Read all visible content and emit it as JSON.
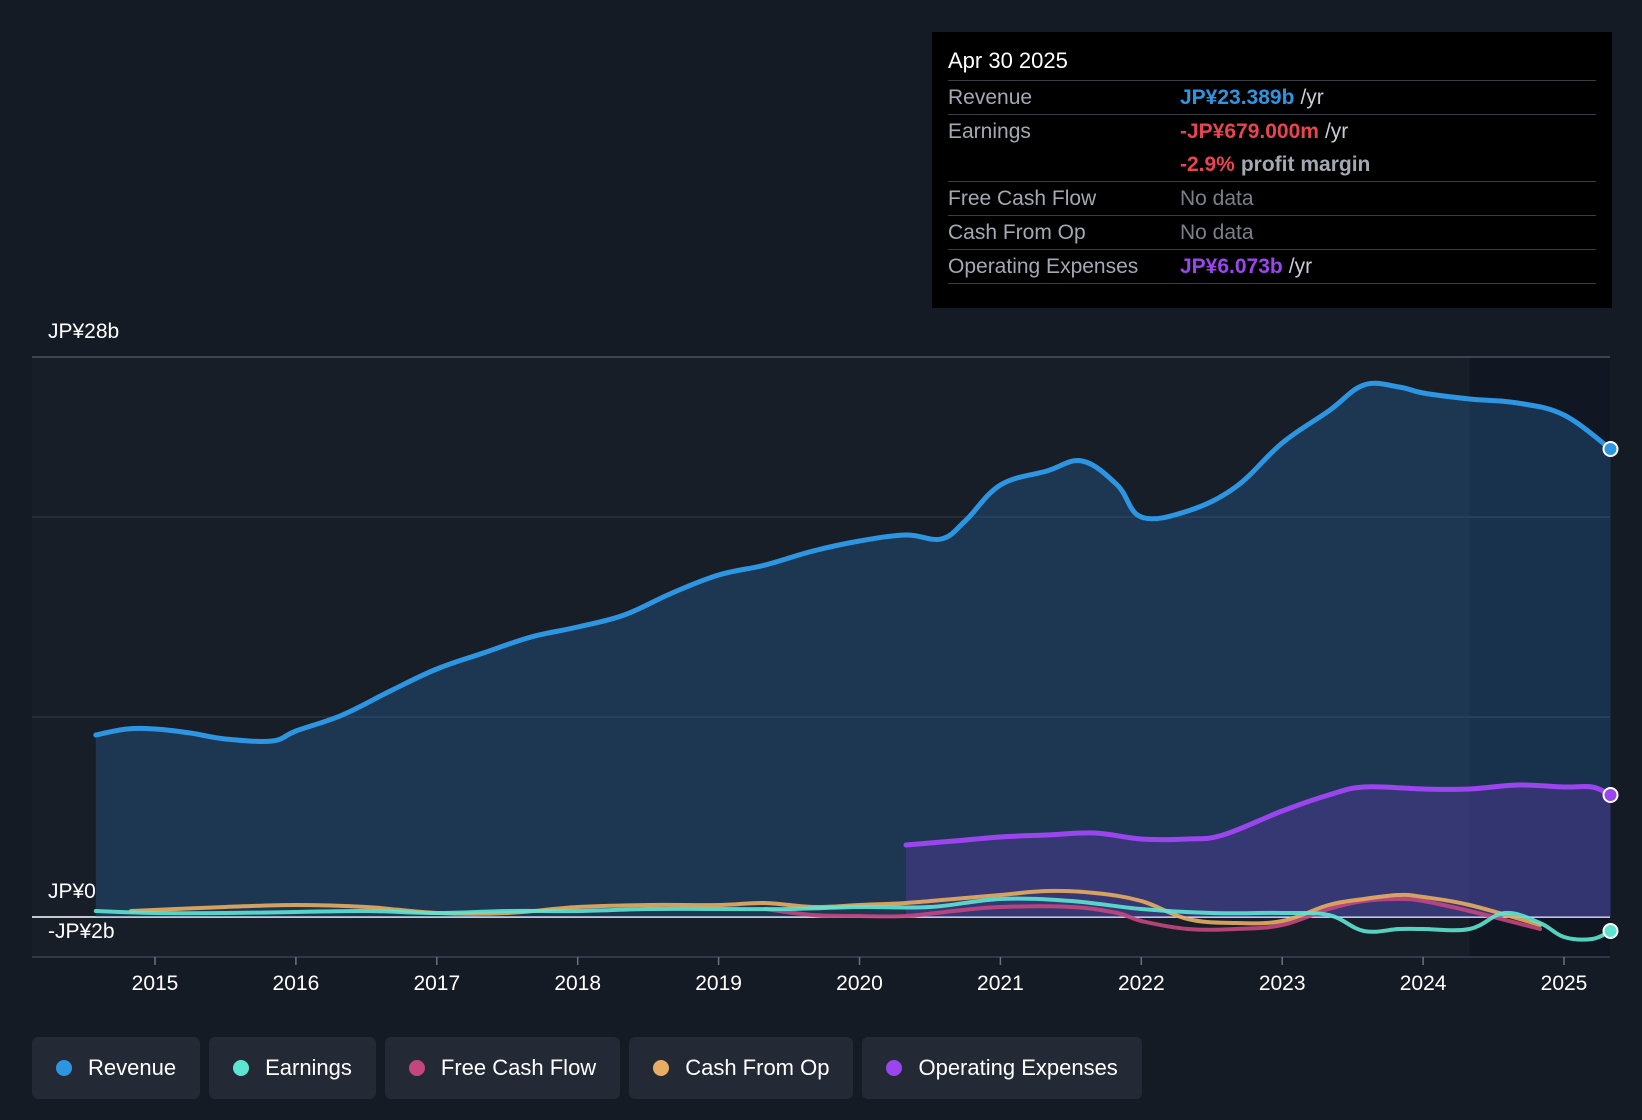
{
  "colors": {
    "revenue": "#2d96e2",
    "earnings": "#5ee5d1",
    "free_cash_flow": "#c4467f",
    "cash_from_op": "#e8ad62",
    "operating_expenses": "#9b45ee",
    "negative": "#e94451"
  },
  "tooltip": {
    "date": "Apr 30 2025",
    "rows": {
      "revenue": {
        "label": "Revenue",
        "value": "JP¥23.389b",
        "unit": "/yr"
      },
      "earnings": {
        "label": "Earnings",
        "value": "-JP¥679.000m",
        "unit": "/yr"
      },
      "margin": {
        "value": "-2.9%",
        "unit": "profit margin"
      },
      "fcf": {
        "label": "Free Cash Flow",
        "value": "No data"
      },
      "cfo": {
        "label": "Cash From Op",
        "value": "No data"
      },
      "opex": {
        "label": "Operating Expenses",
        "value": "JP¥6.073b",
        "unit": "/yr"
      }
    }
  },
  "legend": {
    "revenue": "Revenue",
    "earnings": "Earnings",
    "free_cash_flow": "Free Cash Flow",
    "cash_from_op": "Cash From Op",
    "operating_expenses": "Operating Expenses"
  },
  "chart_data": {
    "type": "area",
    "unit": "JP¥ billions",
    "y_top_label": "JP¥28b",
    "y_zero_label": "JP¥0",
    "y_bottom_label": "-JP¥2b",
    "ylim": [
      -2,
      28
    ],
    "xlim": [
      2014.58,
      2025.33
    ],
    "x_ticks": [
      2015,
      2016,
      2017,
      2018,
      2019,
      2020,
      2021,
      2022,
      2023,
      2024,
      2025
    ],
    "x_tick_labels": [
      "2015",
      "2016",
      "2017",
      "2018",
      "2019",
      "2020",
      "2021",
      "2022",
      "2023",
      "2024",
      "2025"
    ],
    "gridlines": [
      28,
      20,
      10
    ],
    "forecast_start": 2024.33,
    "series": [
      {
        "name": "Revenue",
        "key": "revenue",
        "points": [
          [
            2014.58,
            9.1
          ],
          [
            2014.8,
            9.4
          ],
          [
            2015.0,
            9.4
          ],
          [
            2015.25,
            9.2
          ],
          [
            2015.5,
            8.9
          ],
          [
            2015.83,
            8.8
          ],
          [
            2016.0,
            9.3
          ],
          [
            2016.33,
            10.1
          ],
          [
            2016.67,
            11.3
          ],
          [
            2017.0,
            12.4
          ],
          [
            2017.33,
            13.2
          ],
          [
            2017.67,
            14.0
          ],
          [
            2018.0,
            14.5
          ],
          [
            2018.33,
            15.1
          ],
          [
            2018.67,
            16.2
          ],
          [
            2019.0,
            17.1
          ],
          [
            2019.33,
            17.6
          ],
          [
            2019.67,
            18.3
          ],
          [
            2020.0,
            18.8
          ],
          [
            2020.33,
            19.1
          ],
          [
            2020.58,
            18.9
          ],
          [
            2020.75,
            19.8
          ],
          [
            2021.0,
            21.6
          ],
          [
            2021.33,
            22.3
          ],
          [
            2021.58,
            22.8
          ],
          [
            2021.83,
            21.6
          ],
          [
            2022.0,
            20.0
          ],
          [
            2022.33,
            20.3
          ],
          [
            2022.67,
            21.5
          ],
          [
            2023.0,
            23.7
          ],
          [
            2023.33,
            25.3
          ],
          [
            2023.58,
            26.6
          ],
          [
            2023.83,
            26.5
          ],
          [
            2024.0,
            26.2
          ],
          [
            2024.33,
            25.9
          ],
          [
            2024.67,
            25.7
          ],
          [
            2025.0,
            25.1
          ],
          [
            2025.33,
            23.4
          ]
        ]
      },
      {
        "name": "Operating Expenses",
        "key": "operating_expenses",
        "points": [
          [
            2020.33,
            3.6
          ],
          [
            2020.67,
            3.8
          ],
          [
            2021.0,
            4.0
          ],
          [
            2021.33,
            4.1
          ],
          [
            2021.67,
            4.2
          ],
          [
            2022.0,
            3.9
          ],
          [
            2022.33,
            3.9
          ],
          [
            2022.58,
            4.1
          ],
          [
            2023.0,
            5.3
          ],
          [
            2023.33,
            6.1
          ],
          [
            2023.58,
            6.5
          ],
          [
            2024.0,
            6.4
          ],
          [
            2024.33,
            6.4
          ],
          [
            2024.67,
            6.6
          ],
          [
            2025.0,
            6.5
          ],
          [
            2025.2,
            6.5
          ],
          [
            2025.33,
            6.1
          ]
        ]
      },
      {
        "name": "Free Cash Flow",
        "key": "free_cash_flow",
        "points": [
          [
            2019.33,
            0.4
          ],
          [
            2019.67,
            0.1
          ],
          [
            2020.0,
            0.05
          ],
          [
            2020.33,
            0.05
          ],
          [
            2020.67,
            0.3
          ],
          [
            2021.0,
            0.5
          ],
          [
            2021.5,
            0.5
          ],
          [
            2021.83,
            0.2
          ],
          [
            2022.0,
            -0.2
          ],
          [
            2022.33,
            -0.6
          ],
          [
            2022.67,
            -0.6
          ],
          [
            2023.0,
            -0.4
          ],
          [
            2023.33,
            0.4
          ],
          [
            2023.58,
            0.8
          ],
          [
            2023.83,
            0.9
          ],
          [
            2024.0,
            0.8
          ],
          [
            2024.33,
            0.3
          ],
          [
            2024.83,
            -0.6
          ]
        ]
      },
      {
        "name": "Cash From Op",
        "key": "cash_from_op",
        "points": [
          [
            2014.83,
            0.3
          ],
          [
            2015.5,
            0.5
          ],
          [
            2016.0,
            0.6
          ],
          [
            2016.5,
            0.5
          ],
          [
            2017.0,
            0.2
          ],
          [
            2017.5,
            0.2
          ],
          [
            2018.0,
            0.5
          ],
          [
            2018.5,
            0.6
          ],
          [
            2019.0,
            0.6
          ],
          [
            2019.33,
            0.7
          ],
          [
            2019.67,
            0.5
          ],
          [
            2020.0,
            0.6
          ],
          [
            2020.33,
            0.7
          ],
          [
            2020.67,
            0.9
          ],
          [
            2021.0,
            1.1
          ],
          [
            2021.33,
            1.3
          ],
          [
            2021.67,
            1.2
          ],
          [
            2022.0,
            0.8
          ],
          [
            2022.33,
            -0.1
          ],
          [
            2022.67,
            -0.3
          ],
          [
            2023.0,
            -0.2
          ],
          [
            2023.33,
            0.6
          ],
          [
            2023.58,
            0.9
          ],
          [
            2023.83,
            1.1
          ],
          [
            2024.0,
            1.0
          ],
          [
            2024.33,
            0.6
          ],
          [
            2024.83,
            -0.4
          ]
        ]
      },
      {
        "name": "Earnings",
        "key": "earnings",
        "points": [
          [
            2014.58,
            0.3
          ],
          [
            2015.0,
            0.2
          ],
          [
            2015.5,
            0.2
          ],
          [
            2016.0,
            0.25
          ],
          [
            2016.5,
            0.3
          ],
          [
            2017.0,
            0.2
          ],
          [
            2017.5,
            0.3
          ],
          [
            2018.0,
            0.3
          ],
          [
            2018.5,
            0.4
          ],
          [
            2019.0,
            0.4
          ],
          [
            2019.5,
            0.4
          ],
          [
            2020.0,
            0.5
          ],
          [
            2020.5,
            0.5
          ],
          [
            2021.0,
            0.9
          ],
          [
            2021.5,
            0.8
          ],
          [
            2022.0,
            0.4
          ],
          [
            2022.5,
            0.2
          ],
          [
            2023.0,
            0.2
          ],
          [
            2023.33,
            0.1
          ],
          [
            2023.58,
            -0.7
          ],
          [
            2023.83,
            -0.6
          ],
          [
            2024.0,
            -0.6
          ],
          [
            2024.33,
            -0.6
          ],
          [
            2024.58,
            0.2
          ],
          [
            2024.83,
            -0.3
          ],
          [
            2025.0,
            -1.0
          ],
          [
            2025.2,
            -1.1
          ],
          [
            2025.33,
            -0.7
          ]
        ]
      }
    ]
  }
}
